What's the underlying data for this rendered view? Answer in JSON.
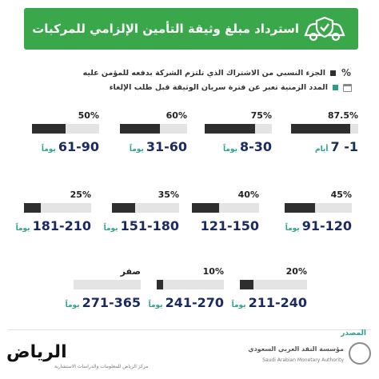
{
  "header": {
    "title": "استرداد مبلغ وثيقة التأمين الإلزامي للمركبات",
    "icon": "car-shield-check-icon",
    "color": "#3aa84a"
  },
  "legend": {
    "percent_symbol": "%",
    "percent_text": "الجزء النسبي من الاشتراك الذي تلتزم الشركة بدفعه للمؤمن عليه",
    "duration_text": "المدد الزمنية تعبر عن فترة سريان الوثيقة قبل طلب الإلغاء"
  },
  "cells": [
    {
      "percent": "87.5%",
      "fraction": 0.875,
      "range": "1- 7",
      "unit": "أيام"
    },
    {
      "percent": "75%",
      "fraction": 0.75,
      "range": "8-30",
      "unit": "يوماً"
    },
    {
      "percent": "60%",
      "fraction": 0.6,
      "range": "31-60",
      "unit": "يوماً"
    },
    {
      "percent": "50%",
      "fraction": 0.5,
      "range": "61-90",
      "unit": "يوماً"
    },
    {
      "percent": "45%",
      "fraction": 0.45,
      "range": "91-120",
      "unit": "يوماً"
    },
    {
      "percent": "40%",
      "fraction": 0.4,
      "range": "121-150",
      "unit": "يوماً"
    },
    {
      "percent": "35%",
      "fraction": 0.35,
      "range": "151-180",
      "unit": "يوماً"
    },
    {
      "percent": "25%",
      "fraction": 0.25,
      "range": "181-210",
      "unit": "يوماً"
    },
    {
      "percent": "20%",
      "fraction": 0.2,
      "range": "211-240",
      "unit": "يوماً"
    },
    {
      "percent": "10%",
      "fraction": 0.1,
      "range": "241-270",
      "unit": "يوماً"
    },
    {
      "percent": "صفر",
      "fraction": 0.0,
      "range": "271-365",
      "unit": "يوماً"
    }
  ],
  "footer": {
    "source_label": "المصدر",
    "sama_ar": "مؤسسة النقد العربي السعودي",
    "sama_en": "Saudi Arabian Monetary Authority",
    "publisher": "الرياض",
    "publisher_sub": "مركز الرياض للمعلومات والدراسات الاستشارية"
  }
}
